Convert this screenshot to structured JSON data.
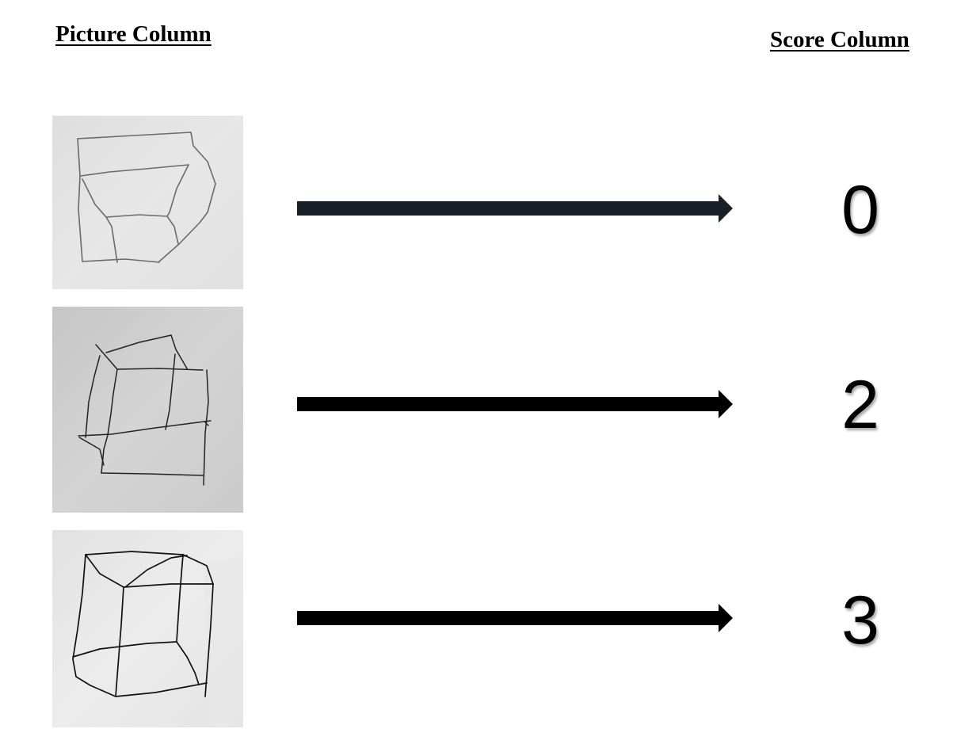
{
  "headers": {
    "picture_column": "Picture Column",
    "score_column": "Score Column"
  },
  "rows": [
    {
      "photo": "hand-drawn-cube-sketch-1",
      "arrow": "right-arrow-icon",
      "score": "0"
    },
    {
      "photo": "hand-drawn-cube-sketch-2",
      "arrow": "right-arrow-icon",
      "score": "2"
    },
    {
      "photo": "hand-drawn-cube-sketch-3",
      "arrow": "right-arrow-icon",
      "score": "3"
    }
  ],
  "colors": {
    "text": "#000000",
    "arrow_row1": "#1a2028",
    "arrow": "#000000",
    "paper_row1": "#e4e4e4",
    "paper_row2": "#cfcfcf",
    "paper_row3": "#e9e9e9",
    "sketch_pencil": "#3a3a3a",
    "sketch_pen": "#111111"
  }
}
